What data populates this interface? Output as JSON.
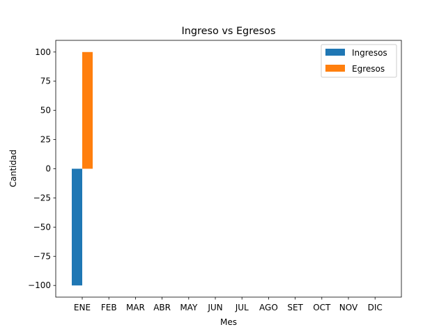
{
  "chart_data": {
    "type": "bar",
    "title": "Ingreso vs Egresos",
    "xlabel": "Mes",
    "ylabel": "Cantidad",
    "categories": [
      "ENE",
      "FEB",
      "MAR",
      "ABR",
      "MAY",
      "JUN",
      "JUL",
      "AGO",
      "SET",
      "OCT",
      "NOV",
      "DIC"
    ],
    "series": [
      {
        "name": "Ingresos",
        "color": "#1f77b4",
        "values": [
          -100,
          0,
          0,
          0,
          0,
          0,
          0,
          0,
          0,
          0,
          0,
          0
        ]
      },
      {
        "name": "Egresos",
        "color": "#ff7f0e",
        "values": [
          100,
          0,
          0,
          0,
          0,
          0,
          0,
          0,
          0,
          0,
          0,
          0
        ]
      }
    ],
    "ylim": [
      -110,
      110
    ],
    "yticks": [
      -100,
      -75,
      -50,
      -25,
      0,
      25,
      50,
      75,
      100
    ],
    "ytick_labels": [
      "−100",
      "−75",
      "−50",
      "−25",
      "0",
      "25",
      "50",
      "75",
      "100"
    ],
    "grid": false,
    "legend_position": "top-right"
  }
}
